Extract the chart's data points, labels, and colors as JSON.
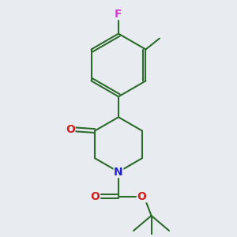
{
  "background_color": "#e8ecf0",
  "bond_color": "#2d6b2d",
  "atom_colors": {
    "F": "#cc44cc",
    "O": "#cc2222",
    "N": "#2222cc"
  },
  "font_size_atoms": 10,
  "line_width": 1.5
}
